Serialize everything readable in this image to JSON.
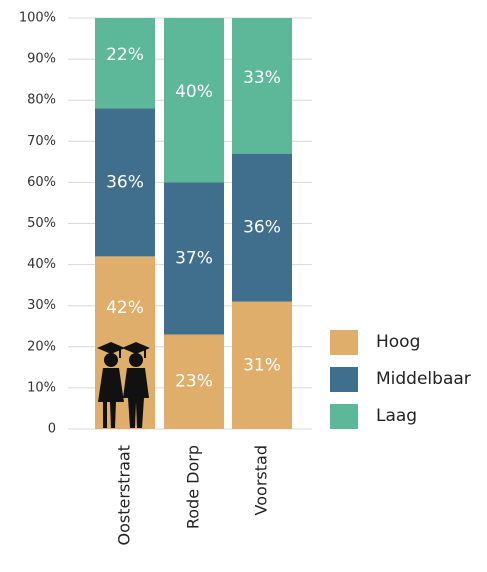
{
  "chart_data": {
    "type": "stacked_bar",
    "categories": [
      "Oosterstraat",
      "Rode Dorp",
      "Voorstad"
    ],
    "series": [
      {
        "name": "Hoog",
        "color": "#dfae6a",
        "values": [
          42,
          23,
          31
        ],
        "value_labels": [
          "42%",
          "23%",
          "31%"
        ]
      },
      {
        "name": "Middelbaar",
        "color": "#3f6f8c",
        "values": [
          36,
          37,
          36
        ],
        "value_labels": [
          "36%",
          "37%",
          "36%"
        ]
      },
      {
        "name": "Laag",
        "color": "#5cb898",
        "values": [
          22,
          40,
          33
        ],
        "value_labels": [
          "22%",
          "40%",
          "33%"
        ]
      }
    ],
    "ylim": [
      0,
      100
    ],
    "yticks": [
      0,
      {
        "value": 10,
        "label": "10%"
      },
      {
        "value": 20,
        "label": "20%"
      },
      {
        "value": 30,
        "label": "30%"
      },
      {
        "value": 40,
        "label": "40%"
      },
      {
        "value": 50,
        "label": "50%"
      },
      {
        "value": 60,
        "label": "60%"
      },
      {
        "value": 70,
        "label": "70%"
      },
      {
        "value": 80,
        "label": "80%"
      },
      {
        "value": 90,
        "label": "90%"
      },
      {
        "value": 100,
        "label": "100%"
      }
    ],
    "grid": true,
    "legend": "right"
  }
}
